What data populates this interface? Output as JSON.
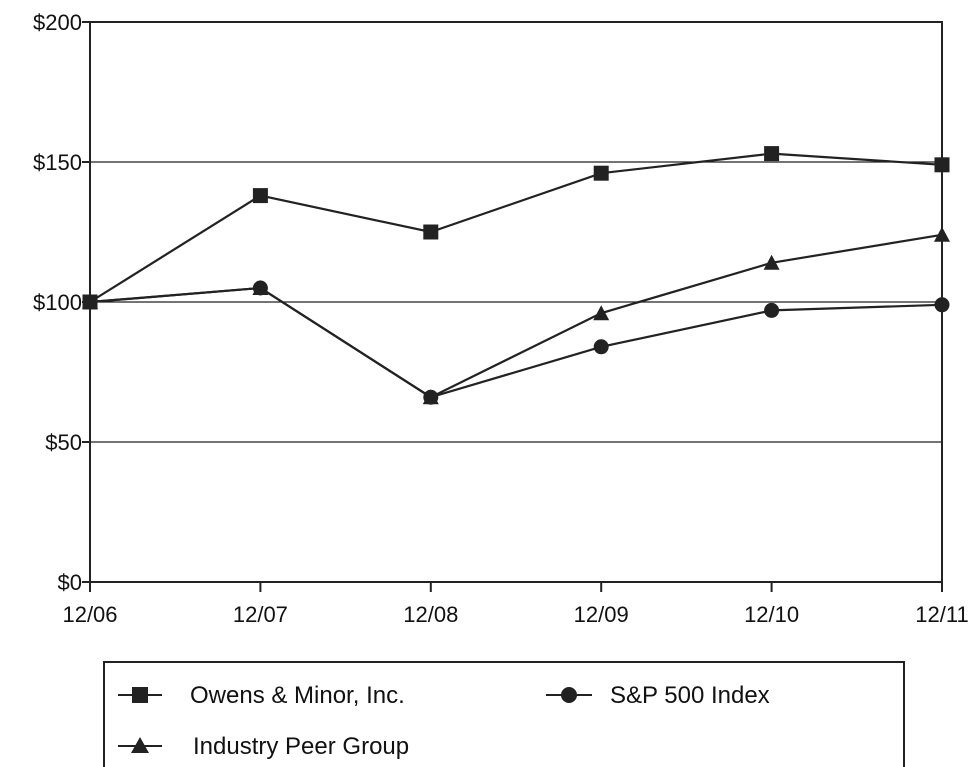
{
  "chart_data": {
    "type": "line",
    "title": "",
    "xlabel": "",
    "ylabel": "",
    "categories": [
      "12/06",
      "12/07",
      "12/08",
      "12/09",
      "12/10",
      "12/11"
    ],
    "y_ticks": [
      "$0",
      "$50",
      "$100",
      "$150",
      "$200"
    ],
    "ylim": [
      0,
      200
    ],
    "grid": "horizontal",
    "legend_position": "bottom",
    "series": [
      {
        "name": "Owens & Minor, Inc.",
        "marker": "square",
        "values": [
          100,
          138,
          125,
          146,
          153,
          149
        ]
      },
      {
        "name": "S&P 500 Index",
        "marker": "circle",
        "values": [
          100,
          105,
          66,
          84,
          97,
          99
        ]
      },
      {
        "name": "Industry Peer Group",
        "marker": "triangle",
        "values": [
          100,
          105,
          66,
          96,
          114,
          124
        ]
      }
    ],
    "colors": {
      "line": "#222222",
      "grid": "#222222",
      "background": "#ffffff"
    }
  }
}
